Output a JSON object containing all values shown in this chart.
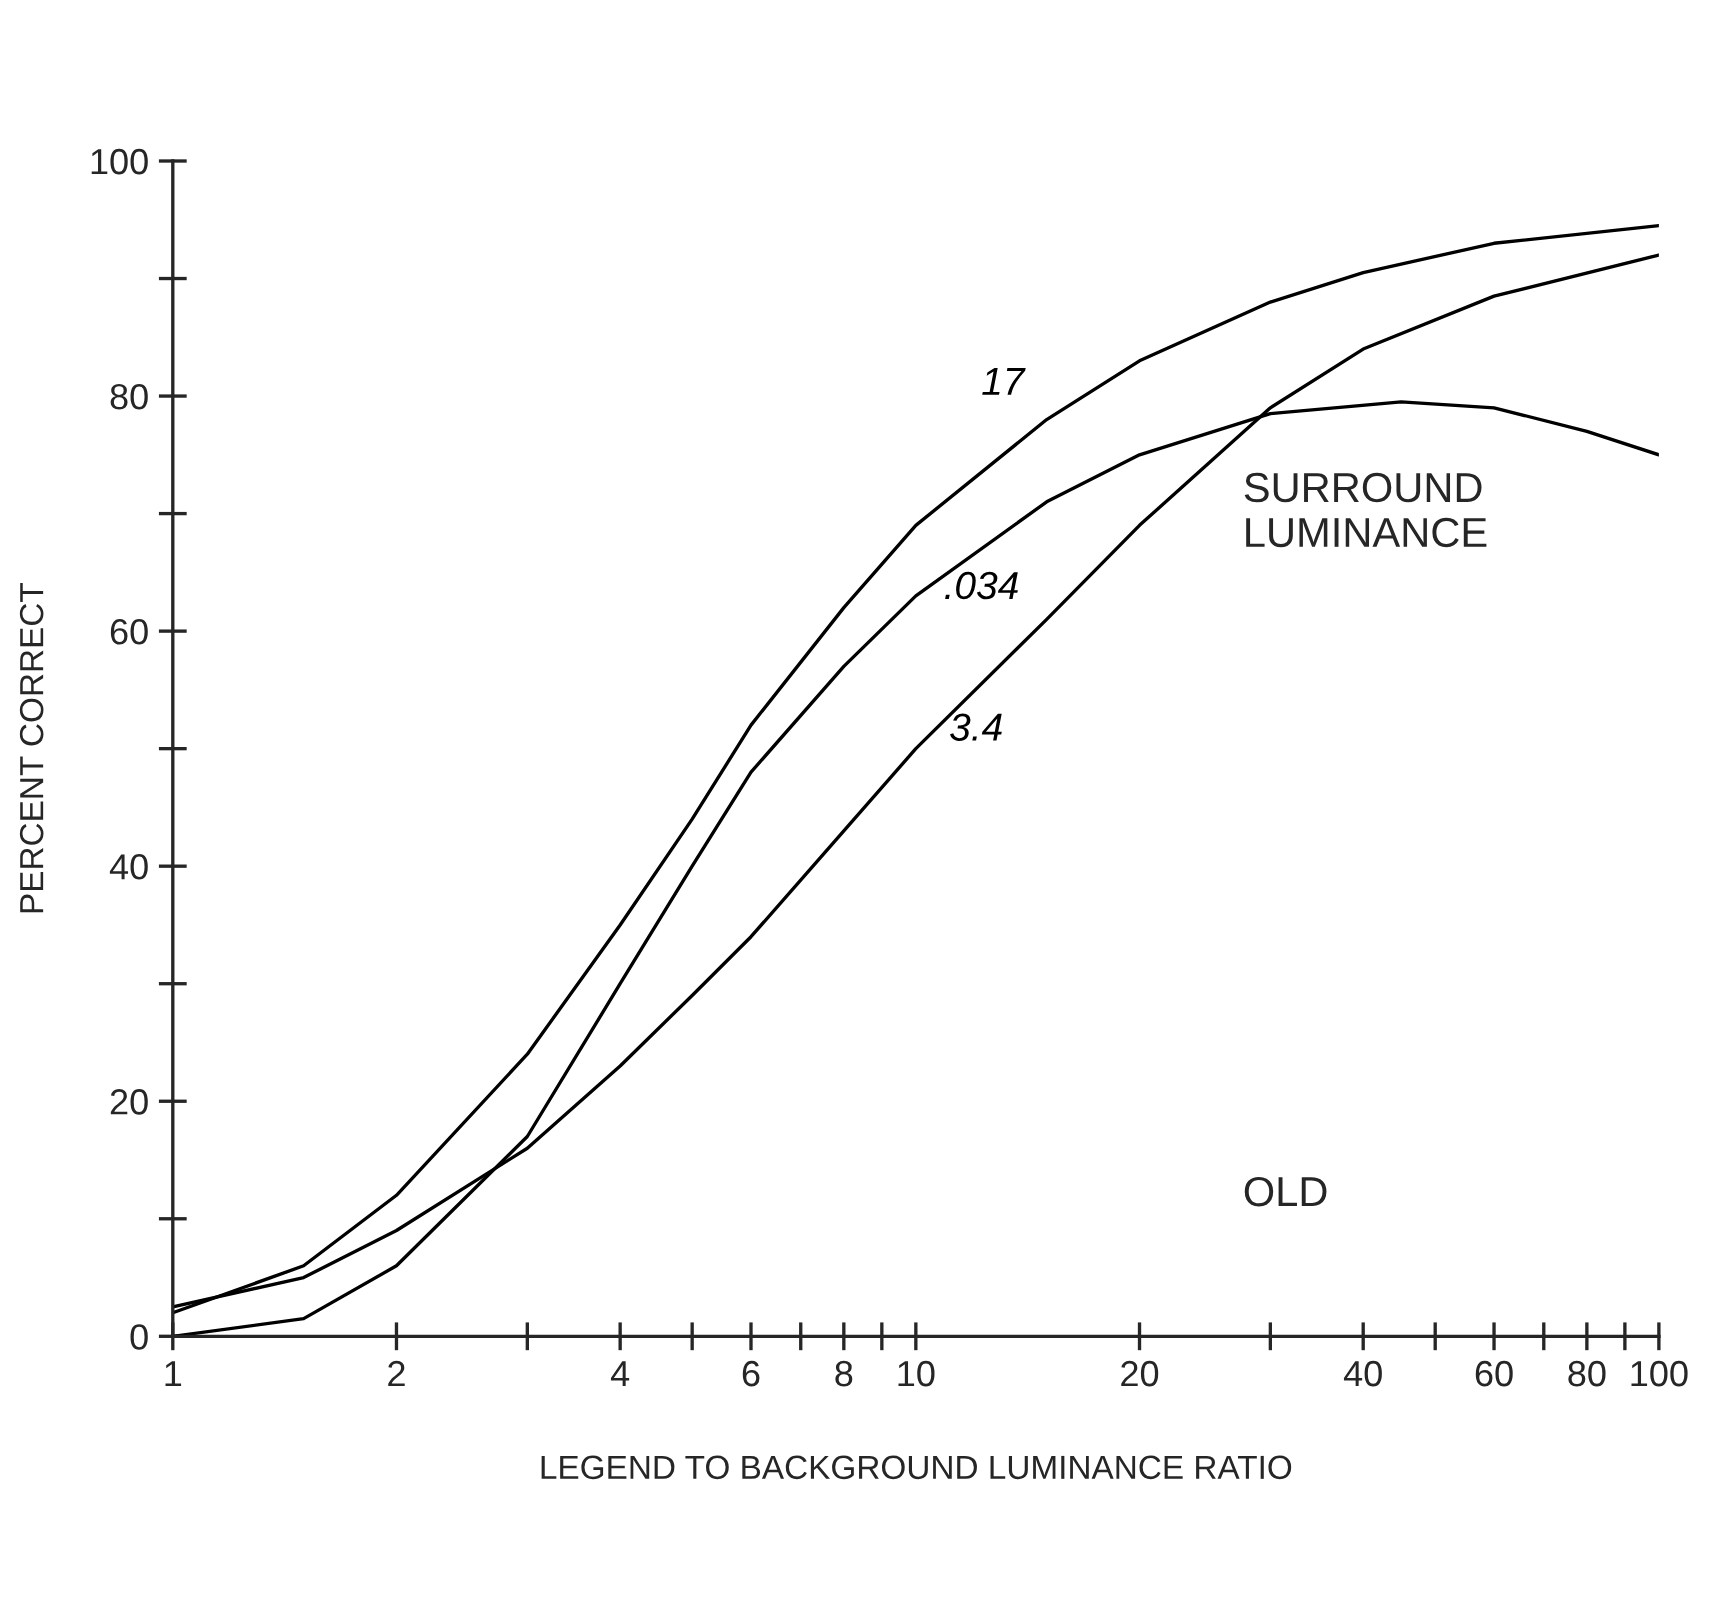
{
  "chart_data": {
    "type": "line",
    "xlabel": "LEGEND TO BACKGROUND LUMINANCE RATIO",
    "ylabel": "PERCENT CORRECT",
    "log": "x",
    "xlim": [
      1,
      100
    ],
    "ylim": [
      0,
      100
    ],
    "xticks": [
      1,
      2,
      {
        "value": 3,
        "label": null
      },
      4,
      {
        "value": 5,
        "label": null
      },
      6,
      {
        "value": 7,
        "label": null
      },
      8,
      {
        "value": 9,
        "label": null
      },
      10,
      20,
      {
        "value": 30,
        "label": null
      },
      40,
      {
        "value": 50,
        "label": null
      },
      60,
      {
        "value": 70,
        "label": null
      },
      80,
      {
        "value": 90,
        "label": null
      },
      100
    ],
    "yticks": [
      0,
      {
        "value": 10,
        "label": null
      },
      20,
      {
        "value": 30,
        "label": null
      },
      40,
      {
        "value": 50,
        "label": null
      },
      60,
      {
        "value": 70,
        "label": null
      },
      80,
      {
        "value": 90,
        "label": null
      },
      100
    ],
    "grid": false,
    "legend": false,
    "marker": "none",
    "line_style": "solid",
    "series": [
      {
        "name": "17",
        "color": "#000000",
        "x": [
          1,
          1.5,
          2,
          3,
          4,
          5,
          6,
          8,
          10,
          15,
          20,
          30,
          40,
          60,
          100
        ],
        "values": [
          2,
          6,
          12,
          24,
          35,
          44,
          52,
          62,
          69,
          78,
          83,
          88,
          90.5,
          93,
          94.5
        ]
      },
      {
        "name": ".034",
        "color": "#000000",
        "x": [
          1,
          1.5,
          2,
          3,
          4,
          5,
          6,
          8,
          10,
          15,
          20,
          30,
          45,
          60,
          80,
          100
        ],
        "values": [
          0,
          1.5,
          6,
          17,
          30,
          40,
          48,
          57,
          63,
          71,
          75,
          78.5,
          79.5,
          79,
          77,
          75
        ]
      },
      {
        "name": "3.4",
        "color": "#000000",
        "x": [
          1,
          1.5,
          2,
          3,
          4,
          5,
          6,
          8,
          10,
          15,
          20,
          30,
          40,
          60,
          100
        ],
        "values": [
          2.5,
          5,
          9,
          16,
          23,
          29,
          34,
          43,
          50,
          61,
          69,
          79,
          84,
          88.5,
          92
        ]
      }
    ],
    "annotations": [
      "SURROUND\nLUMINANCE",
      "OLD"
    ]
  }
}
